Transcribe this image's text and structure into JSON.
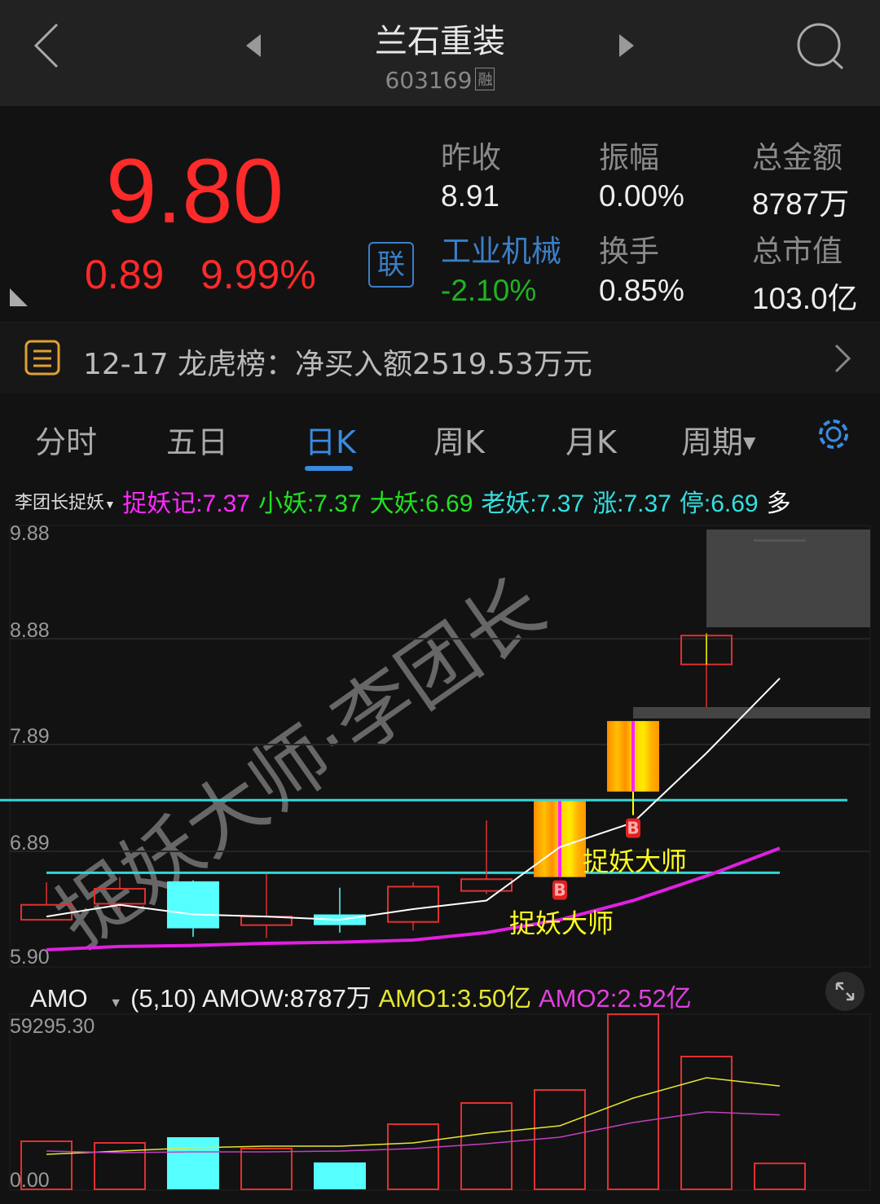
{
  "header": {
    "title": "兰石重装",
    "code": "603169",
    "margin_badge": "融",
    "icons": [
      "back-chevron-icon",
      "prev-stock-triangle-icon",
      "next-stock-triangle-icon",
      "search-icon"
    ]
  },
  "quote": {
    "price": "9.80",
    "change": "0.89",
    "change_pct": "9.99%",
    "price_color": "#ff2a2a",
    "link_badge": "联",
    "stats": [
      {
        "label": "昨收",
        "value": "8.91"
      },
      {
        "label": "振幅",
        "value": "0.00%"
      },
      {
        "label": "总金额",
        "value": "8787万"
      },
      {
        "label": "工业机械",
        "value": "-2.10%"
      },
      {
        "label": "换手",
        "value": "0.85%"
      },
      {
        "label": "总市值",
        "value": "103.0亿"
      }
    ],
    "sector_color": "#3a7fc8",
    "sector_change_color": "#1fb41f"
  },
  "lhb": {
    "text": "12-17 龙虎榜：净买入额2519.53万元"
  },
  "tabs": [
    {
      "label": "分时"
    },
    {
      "label": "五日"
    },
    {
      "label": "日K",
      "active": true
    },
    {
      "label": "周K"
    },
    {
      "label": "月K"
    },
    {
      "label": "周期"
    }
  ],
  "indicator": {
    "name": "李团长捉妖",
    "items": [
      {
        "label": "捉妖记:7.37",
        "color": "#ff2aff"
      },
      {
        "label": "小妖:7.37",
        "color": "#22e022"
      },
      {
        "label": "大妖:6.69",
        "color": "#22e022"
      },
      {
        "label": "老妖:7.37",
        "color": "#33e0e0"
      },
      {
        "label": "涨:7.37",
        "color": "#33e0e0"
      },
      {
        "label": "停:6.69",
        "color": "#33e0e0"
      },
      {
        "label": "多",
        "color": "#ffffff"
      }
    ]
  },
  "watermark": "捉妖大师·李团长",
  "chart_data": [
    {
      "type": "candlestick",
      "y_ticks": [
        "9.88",
        "8.88",
        "7.89",
        "6.89",
        "5.90"
      ],
      "ylim": [
        5.9,
        9.88
      ],
      "candles": [
        {
          "o": 6.25,
          "h": 6.6,
          "l": 6.25,
          "c": 6.39
        },
        {
          "o": 6.4,
          "h": 6.65,
          "l": 6.32,
          "c": 6.54
        },
        {
          "o": 6.61,
          "h": 6.62,
          "l": 6.09,
          "c": 6.17
        },
        {
          "o": 6.2,
          "h": 6.68,
          "l": 6.08,
          "c": 6.28
        },
        {
          "o": 6.3,
          "h": 6.55,
          "l": 6.13,
          "c": 6.2
        },
        {
          "o": 6.23,
          "h": 6.6,
          "l": 6.15,
          "c": 6.56
        },
        {
          "o": 6.52,
          "h": 7.18,
          "l": 6.49,
          "c": 6.63
        },
        {
          "o": 6.65,
          "h": 7.36,
          "l": 6.65,
          "c": 7.36,
          "signal": true
        },
        {
          "o": 7.45,
          "h": 8.11,
          "l": 7.23,
          "c": 8.11,
          "signal": true
        },
        {
          "o": 8.64,
          "h": 8.93,
          "l": 8.24,
          "c": 8.91
        },
        {
          "o": 9.8,
          "h": 9.8,
          "l": 9.8,
          "c": 9.8
        }
      ],
      "line_white": [
        6.28,
        6.39,
        6.3,
        6.28,
        6.25,
        6.35,
        6.43,
        6.93,
        7.16,
        7.81,
        8.51
      ],
      "line_magenta": [
        5.97,
        6.0,
        6.01,
        6.03,
        6.04,
        6.06,
        6.13,
        6.25,
        6.43,
        6.66,
        6.92
      ],
      "hlines": [
        {
          "value": 7.37,
          "color": "#33d6d6"
        },
        {
          "value": 6.69,
          "color": "#33d6d6"
        }
      ],
      "annotations": [
        {
          "index": 7,
          "text": "捉妖大师",
          "marker": "B"
        },
        {
          "index": 8,
          "text": "捉妖大师",
          "marker": "B"
        }
      ],
      "colors": {
        "up": "#e03030",
        "down": "#55ffff",
        "signal": "#ffb000",
        "white_line": "#ffffff",
        "magenta_line": "#e020e0"
      }
    },
    {
      "type": "bar",
      "indicator": "AMO",
      "params": "(5,10)",
      "legend": [
        {
          "label": "AMOW:8787万",
          "color": "#eeeeee"
        },
        {
          "label": "AMO1:3.50亿",
          "color": "#e6e632"
        },
        {
          "label": "AMO2:2.52亿",
          "color": "#e040e0"
        }
      ],
      "y_ticks": [
        "59295.30",
        "0.00"
      ],
      "ylim": [
        0,
        59295.3
      ],
      "values": [
        16272,
        15720,
        17650,
        13790,
        9101,
        22063,
        29234,
        33647,
        59295,
        44955,
        8787
      ],
      "down": [
        false,
        false,
        true,
        false,
        true,
        false,
        false,
        false,
        false,
        false,
        false
      ],
      "amo1": [
        11859,
        12962,
        14065,
        14617,
        14617,
        15720,
        19029,
        21511,
        30889,
        37784,
        35000
      ],
      "amo2": [
        12962,
        12410,
        12686,
        12686,
        12962,
        13790,
        15444,
        17650,
        22615,
        26200,
        25200
      ]
    }
  ]
}
